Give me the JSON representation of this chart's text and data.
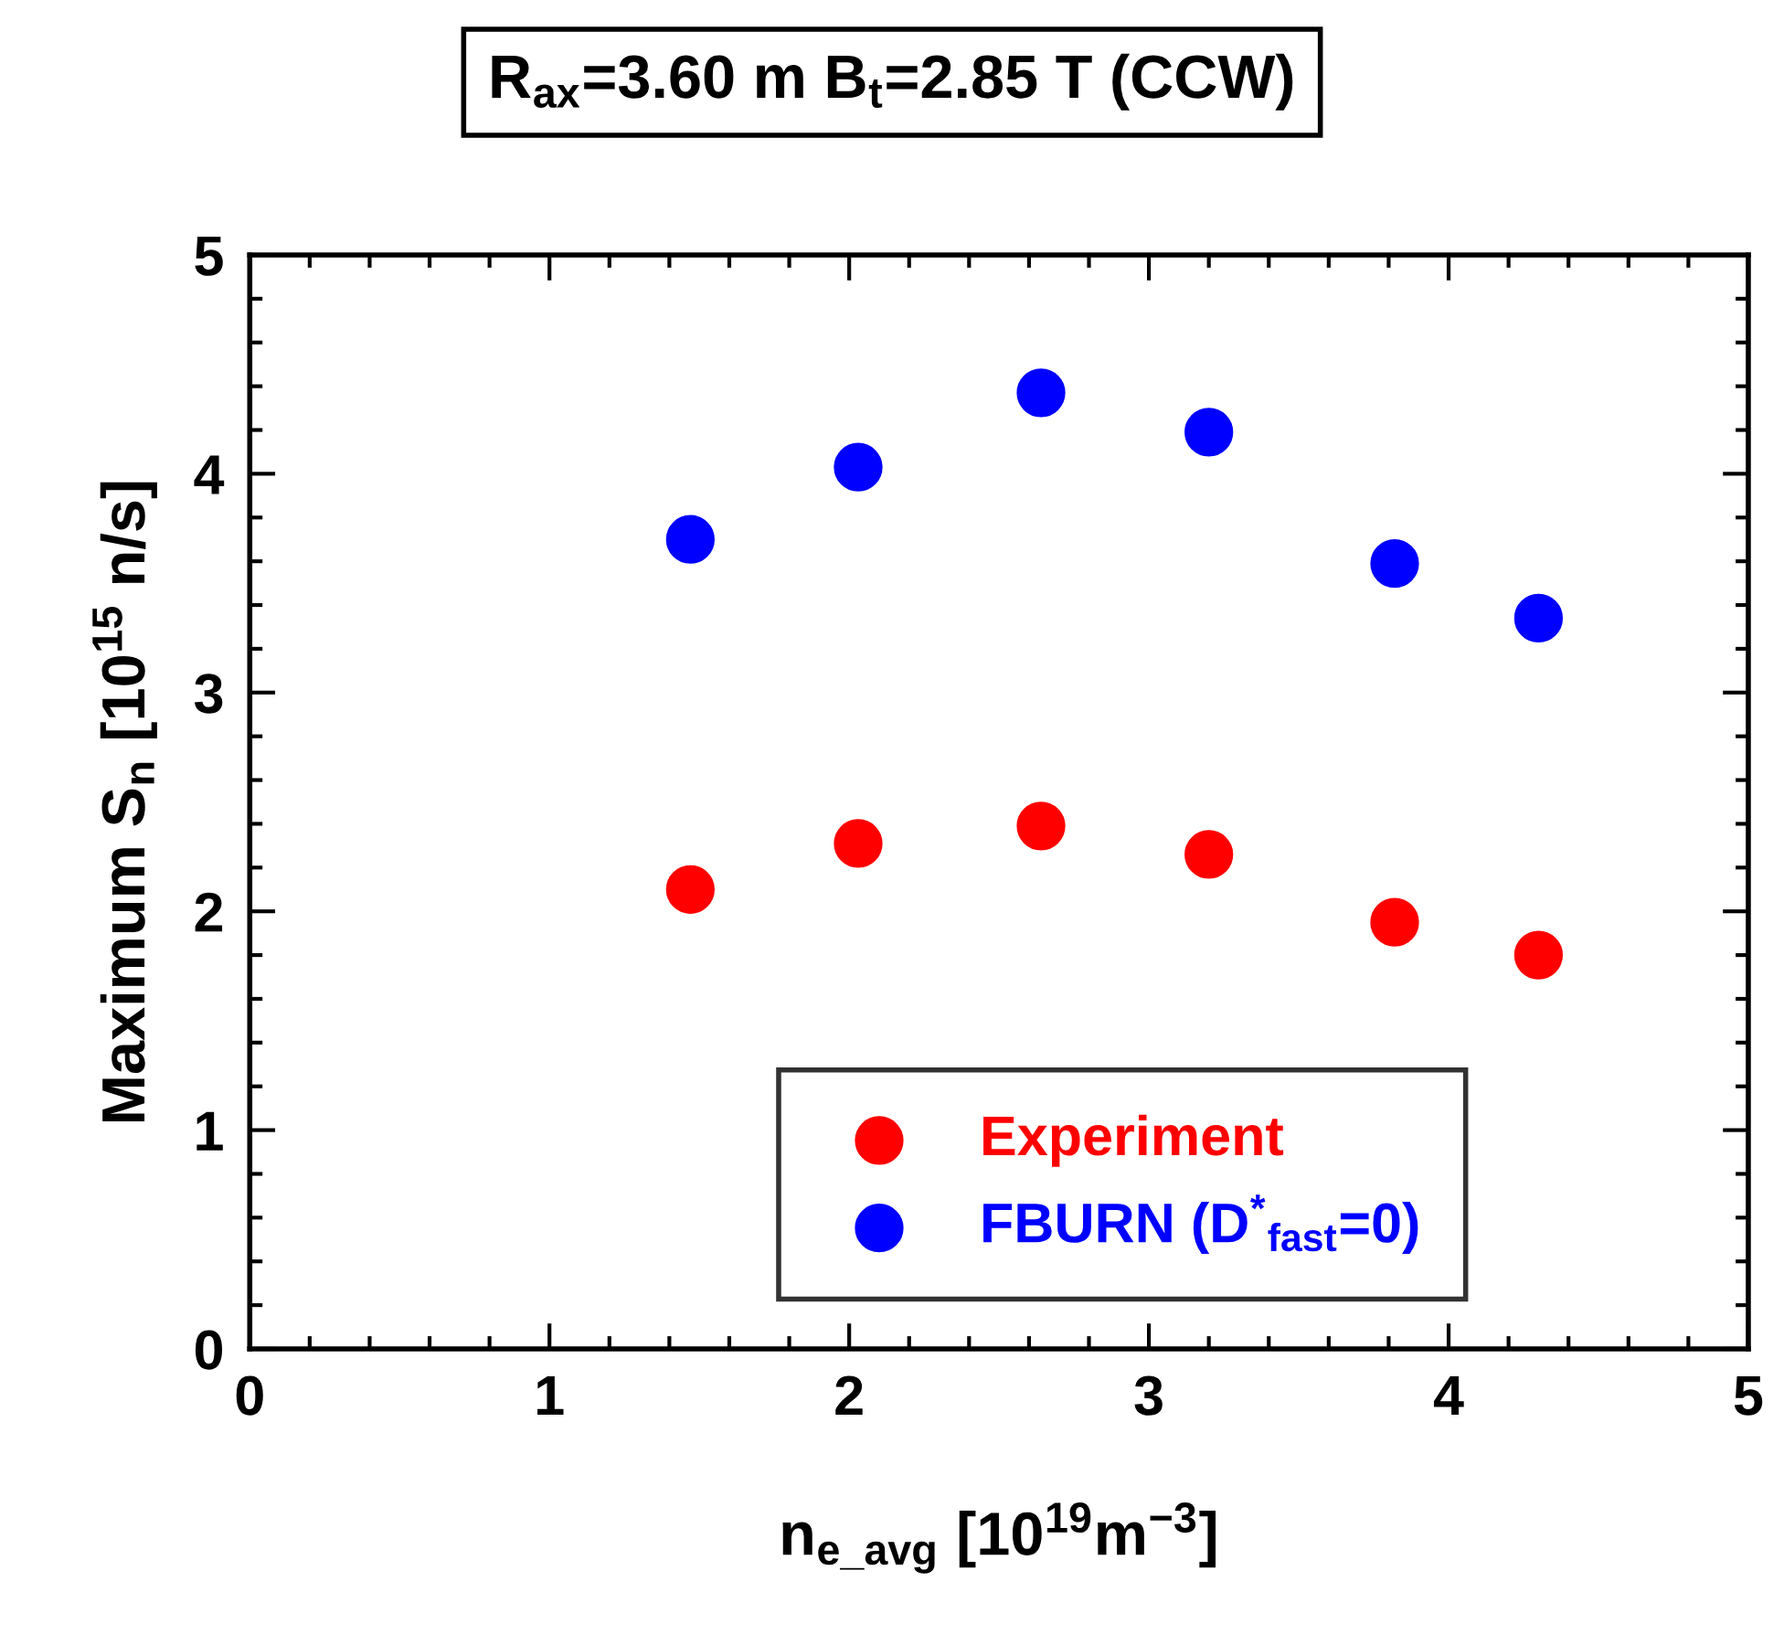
{
  "chart_data": {
    "type": "scatter",
    "title": "R$_{ax}$=3.60 m B$_{t}$=2.85 T (CCW)",
    "xlabel": "n$_{e_avg}$ [10$^{19}$m$^{−3}$]",
    "ylabel": "Maximum S$_{n}$ [10$^{15}$ n/s]",
    "x": [
      1.47,
      2.03,
      2.64,
      3.2,
      3.82,
      4.3
    ],
    "series": [
      {
        "name": "Experiment",
        "color": "#ff0000",
        "values": [
          2.1,
          2.31,
          2.39,
          2.26,
          1.95,
          1.8
        ]
      },
      {
        "name": "FBURN (D$^{*}$$_{fast}$=0)",
        "color": "#0000ff",
        "values": [
          3.7,
          4.03,
          4.37,
          4.19,
          3.59,
          3.34
        ]
      }
    ],
    "xlim": [
      0,
      5
    ],
    "ylim": [
      0,
      5
    ],
    "xticks": [
      0,
      1,
      2,
      3,
      4,
      5
    ],
    "yticks": [
      0,
      1,
      2,
      3,
      4,
      5
    ],
    "marker": "circle",
    "legend": "bottom right",
    "grid": false
  }
}
